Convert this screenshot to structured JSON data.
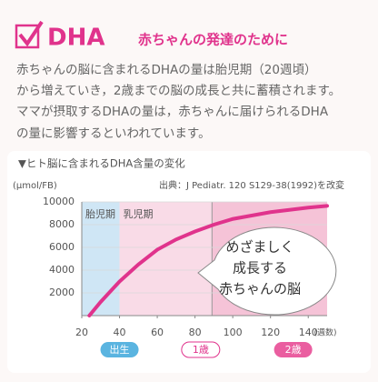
{
  "header": {
    "title": "DHA",
    "subtitle": "赤ちゃんの発達のために"
  },
  "body": [
    "赤ちゃんの脳に含まれるDHAの量は胎児期（20週頃）",
    "から増えていき，2歳までの脳の成長と共に蓄積されます。",
    "ママが摂取するDHAの量は，赤ちゃんに届けられるDHA",
    "の量に影響するといわれています。"
  ],
  "chart_data": {
    "type": "line",
    "title": "▼ヒト脳に含まれるDHA含量の変化",
    "y_label": "(μmol/FB)",
    "source": "出典：J Pediatr. 120 S129-38(1992)を改変",
    "x_label": "(週数)",
    "x": [
      24,
      30,
      40,
      50,
      60,
      70,
      80,
      90,
      100,
      110,
      120,
      130,
      140,
      150
    ],
    "series": [
      {
        "name": "DHA含量",
        "color": "#e0338c",
        "values": [
          0,
          1200,
          3000,
          4500,
          5800,
          6700,
          7400,
          8000,
          8500,
          8800,
          9100,
          9300,
          9500,
          9650
        ]
      }
    ],
    "xlim": [
      20,
      150
    ],
    "xticks": [
      20,
      40,
      60,
      80,
      100,
      120,
      140
    ],
    "ylim": [
      0,
      10000
    ],
    "yticks": [
      2000,
      4000,
      6000,
      8000,
      10000
    ],
    "regions": [
      {
        "label": "胎児期",
        "x": [
          20,
          40
        ],
        "color": "#cfe6f5"
      },
      {
        "label": "乳児期",
        "x": [
          40,
          89
        ],
        "color": "#f9dbe7"
      }
    ],
    "later_region_color": "#f5c3d7",
    "milestones": [
      {
        "label": "出生",
        "x": 40
      },
      {
        "label": "1歳",
        "x": 83
      },
      {
        "label": "2歳",
        "x": 132
      }
    ],
    "annotation": [
      "めざましく",
      "成長する",
      "赤ちゃんの脳"
    ]
  }
}
